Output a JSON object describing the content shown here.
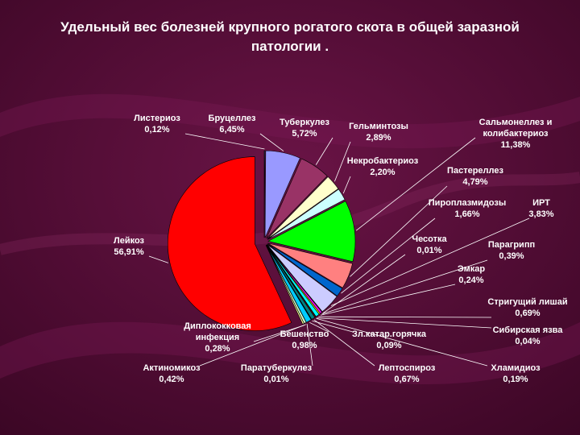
{
  "chart_data": {
    "type": "pie",
    "title": "Удельный вес болезней крупного рогатого скота  в общей заразной патологии .",
    "categories": [
      "Листериоз",
      "Бруцеллез",
      "Туберкулез",
      "Гельминтозы",
      "Некробактериоз",
      "Сальмонеллез и колибактериоз",
      "Пастереллез",
      "Пироплазмидозы",
      "ИРТ",
      "Чесотка",
      "Парагрипп",
      "Эмкар",
      "Стригущий лишай",
      "Сибирская язва",
      "Хламидиоз",
      "Лептоспироз",
      "Зл.катар.горячка",
      "Бешенство",
      "Паратуберкулез",
      "Актиномикоз",
      "Диплококковая инфекция",
      "Лейкоз"
    ],
    "values": [
      0.12,
      6.45,
      5.72,
      2.89,
      2.2,
      11.38,
      4.79,
      1.66,
      3.83,
      0.01,
      0.39,
      0.24,
      0.69,
      0.04,
      0.19,
      0.67,
      0.09,
      0.98,
      0.01,
      0.42,
      0.28,
      56.91
    ],
    "value_labels": [
      "0,12%",
      "6,45%",
      "5,72%",
      "2,89%",
      "2,20%",
      "11,38%",
      "4,79%",
      "1,66%",
      "3,83%",
      "0,01%",
      "0,39%",
      "0,24%",
      "0,69%",
      "0,04%",
      "0,19%",
      "0,67%",
      "0,09%",
      "0,98%",
      "0,01%",
      "0,42%",
      "0,28%",
      "56,91%"
    ],
    "colors": [
      "#9999ff",
      "#9999ff",
      "#993366",
      "#ffffcc",
      "#ccffff",
      "#00ff00",
      "#ff8080",
      "#0066cc",
      "#ccccff",
      "#000080",
      "#ff00ff",
      "#ffff00",
      "#00ffff",
      "#800080",
      "#800000",
      "#008080",
      "#0000ff",
      "#00ccff",
      "#ccffff",
      "#ccffcc",
      "#ffff99",
      "#ff0000"
    ]
  }
}
